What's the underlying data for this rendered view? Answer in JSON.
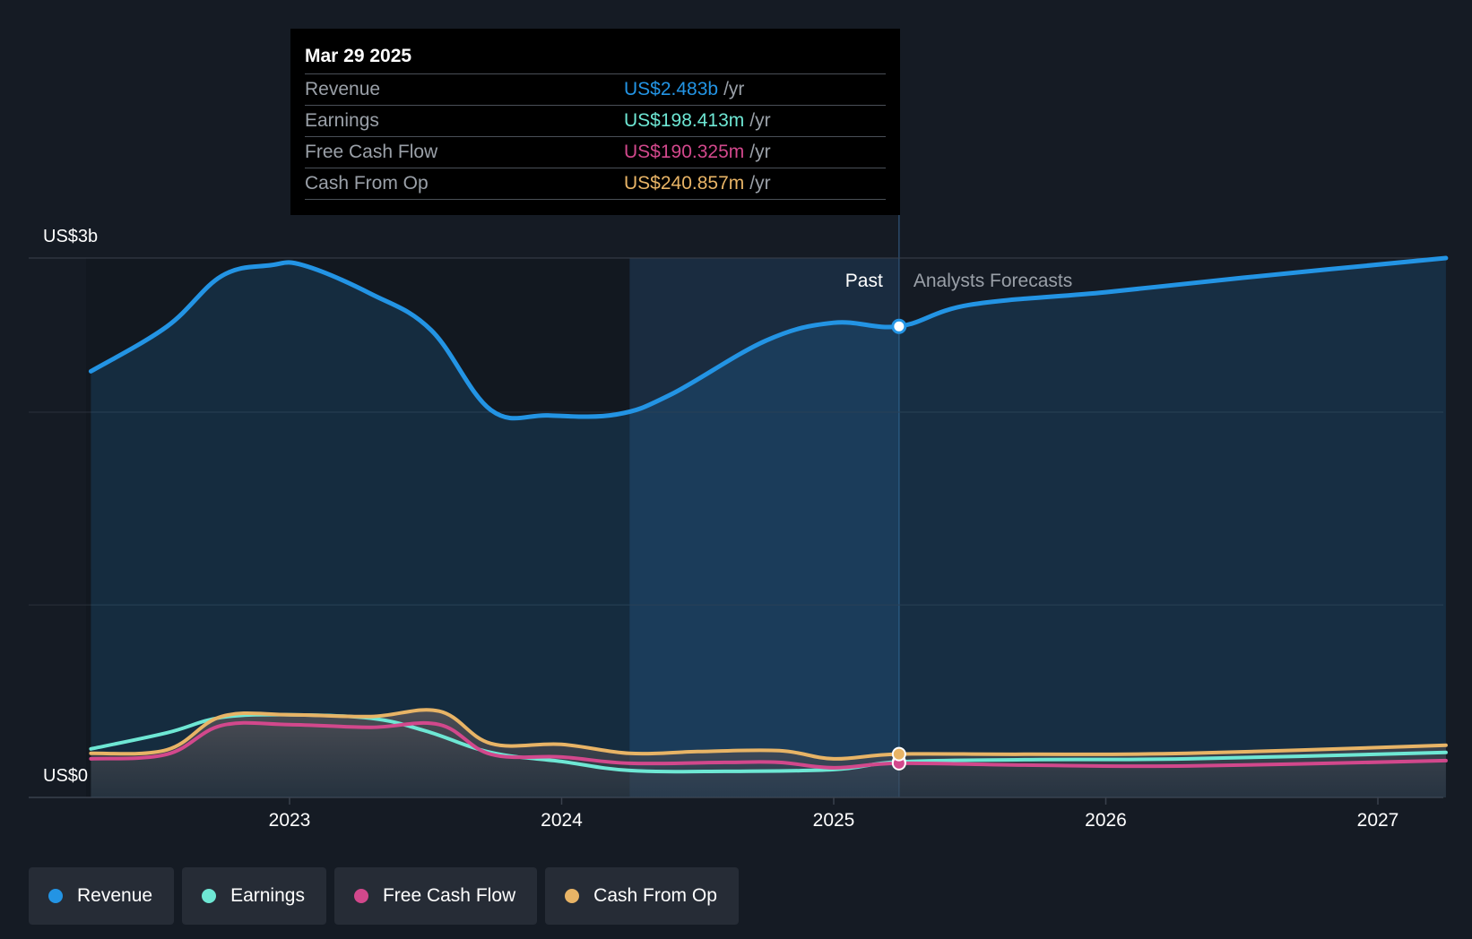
{
  "chart_data": {
    "type": "area",
    "y_axis": {
      "top_label": "US$3b",
      "bottom_label": "US$0",
      "ylim": [
        0,
        3000
      ]
    },
    "x_ticks": [
      "2023",
      "2024",
      "2025",
      "2026",
      "2027"
    ],
    "past_label": "Past",
    "forecast_label": "Analysts Forecasts",
    "grid": true,
    "legend_placement": "bottom-left",
    "series": [
      {
        "key": "revenue",
        "name": "Revenue",
        "color": "#2394e4",
        "points": [
          [
            2022.27,
            2370
          ],
          [
            2022.55,
            2620
          ],
          [
            2022.75,
            2900
          ],
          [
            2022.93,
            2960
          ],
          [
            2023.05,
            2960
          ],
          [
            2023.3,
            2800
          ],
          [
            2023.52,
            2600
          ],
          [
            2023.74,
            2155
          ],
          [
            2023.95,
            2125
          ],
          [
            2024.2,
            2130
          ],
          [
            2024.4,
            2240
          ],
          [
            2024.75,
            2540
          ],
          [
            2025.0,
            2640
          ],
          [
            2025.24,
            2483
          ],
          [
            2025.5,
            2740
          ],
          [
            2026.0,
            2810
          ],
          [
            2026.5,
            2890
          ],
          [
            2027.25,
            3000
          ]
        ]
      },
      {
        "key": "earnings",
        "name": "Earnings",
        "color": "#6ee7d4",
        "points": [
          [
            2022.27,
            270
          ],
          [
            2022.55,
            360
          ],
          [
            2022.75,
            445
          ],
          [
            2023.0,
            460
          ],
          [
            2023.3,
            440
          ],
          [
            2023.5,
            370
          ],
          [
            2023.74,
            250
          ],
          [
            2024.0,
            200
          ],
          [
            2024.25,
            150
          ],
          [
            2024.6,
            145
          ],
          [
            2025.0,
            155
          ],
          [
            2025.24,
            198
          ],
          [
            2025.7,
            210
          ],
          [
            2026.3,
            215
          ],
          [
            2027.25,
            250
          ]
        ]
      },
      {
        "key": "fcf",
        "name": "Free Cash Flow",
        "color": "#d2488c",
        "points": [
          [
            2022.27,
            215
          ],
          [
            2022.55,
            240
          ],
          [
            2022.75,
            400
          ],
          [
            2023.0,
            405
          ],
          [
            2023.3,
            390
          ],
          [
            2023.55,
            405
          ],
          [
            2023.74,
            240
          ],
          [
            2024.0,
            225
          ],
          [
            2024.25,
            190
          ],
          [
            2024.6,
            195
          ],
          [
            2024.8,
            195
          ],
          [
            2025.0,
            165
          ],
          [
            2025.24,
            190
          ],
          [
            2025.7,
            180
          ],
          [
            2026.3,
            175
          ],
          [
            2027.25,
            205
          ]
        ]
      },
      {
        "key": "cfo",
        "name": "Cash From Op",
        "color": "#e8b466",
        "points": [
          [
            2022.27,
            245
          ],
          [
            2022.55,
            265
          ],
          [
            2022.75,
            450
          ],
          [
            2023.0,
            460
          ],
          [
            2023.3,
            450
          ],
          [
            2023.55,
            480
          ],
          [
            2023.74,
            300
          ],
          [
            2024.0,
            295
          ],
          [
            2024.25,
            245
          ],
          [
            2024.5,
            255
          ],
          [
            2024.8,
            260
          ],
          [
            2025.0,
            215
          ],
          [
            2025.24,
            241
          ],
          [
            2025.7,
            240
          ],
          [
            2026.3,
            245
          ],
          [
            2027.25,
            290
          ]
        ]
      }
    ]
  },
  "tooltip": {
    "date": "Mar 29 2025",
    "unit": "/yr",
    "rows": [
      {
        "name": "Revenue",
        "value": "US$2.483b",
        "color": "#2394e4"
      },
      {
        "name": "Earnings",
        "value": "US$198.413m",
        "color": "#6ee7d4"
      },
      {
        "name": "Free Cash Flow",
        "value": "US$190.325m",
        "color": "#d2488c"
      },
      {
        "name": "Cash From Op",
        "value": "US$240.857m",
        "color": "#e8b466"
      }
    ]
  },
  "legend": [
    {
      "label": "Revenue",
      "color": "#2394e4"
    },
    {
      "label": "Earnings",
      "color": "#6ee7d4"
    },
    {
      "label": "Free Cash Flow",
      "color": "#d2488c"
    },
    {
      "label": "Cash From Op",
      "color": "#e8b466"
    }
  ]
}
